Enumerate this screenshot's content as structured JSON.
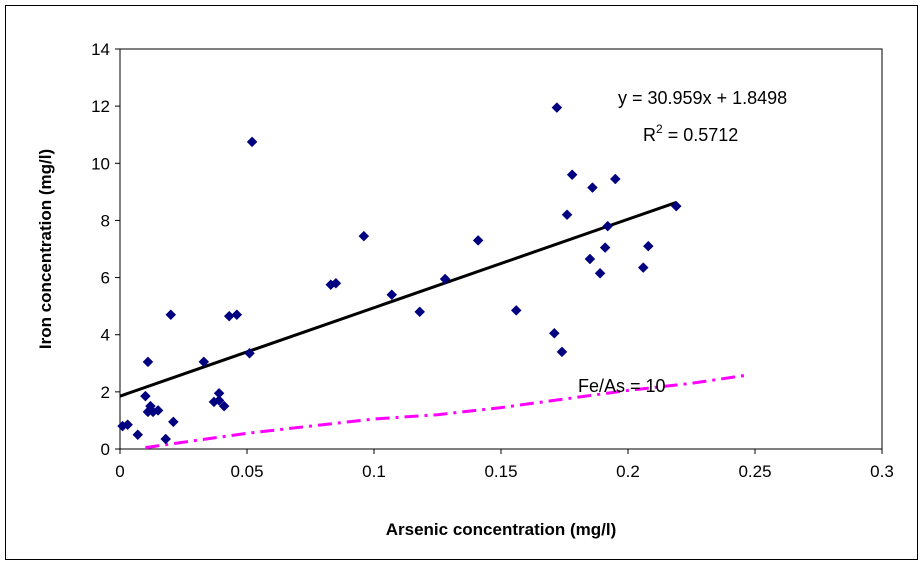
{
  "chart_data": {
    "type": "scatter",
    "title": "",
    "xlabel": "Arsenic concentration (mg/l)",
    "ylabel": "Iron concentration (mg/l)",
    "xlim": [
      0,
      0.3
    ],
    "ylim": [
      0,
      14
    ],
    "x_ticks": [
      "0",
      "0.05",
      "0.1",
      "0.15",
      "0.2",
      "0.25",
      "0.3"
    ],
    "y_ticks": [
      "0",
      "2",
      "4",
      "6",
      "8",
      "10",
      "12",
      "14"
    ],
    "grid": false,
    "legend": "none",
    "series": [
      {
        "color": "#000080",
        "marker": "diamond",
        "points": [
          [
            0.001,
            0.8
          ],
          [
            0.003,
            0.85
          ],
          [
            0.007,
            0.5
          ],
          [
            0.01,
            1.85
          ],
          [
            0.011,
            1.3
          ],
          [
            0.011,
            3.05
          ],
          [
            0.012,
            1.5
          ],
          [
            0.013,
            1.3
          ],
          [
            0.015,
            1.35
          ],
          [
            0.018,
            0.35
          ],
          [
            0.02,
            4.7
          ],
          [
            0.021,
            0.95
          ],
          [
            0.033,
            3.05
          ],
          [
            0.037,
            1.65
          ],
          [
            0.039,
            1.95
          ],
          [
            0.039,
            1.7
          ],
          [
            0.041,
            1.5
          ],
          [
            0.043,
            4.65
          ],
          [
            0.046,
            4.7
          ],
          [
            0.051,
            3.35
          ],
          [
            0.052,
            10.75
          ],
          [
            0.083,
            5.75
          ],
          [
            0.085,
            5.8
          ],
          [
            0.096,
            7.45
          ],
          [
            0.107,
            5.4
          ],
          [
            0.118,
            4.8
          ],
          [
            0.128,
            5.95
          ],
          [
            0.141,
            7.3
          ],
          [
            0.156,
            4.85
          ],
          [
            0.171,
            4.05
          ],
          [
            0.172,
            11.95
          ],
          [
            0.174,
            3.4
          ],
          [
            0.176,
            8.2
          ],
          [
            0.178,
            9.6
          ],
          [
            0.185,
            6.65
          ],
          [
            0.186,
            9.15
          ],
          [
            0.189,
            6.15
          ],
          [
            0.191,
            7.05
          ],
          [
            0.192,
            7.8
          ],
          [
            0.195,
            9.45
          ],
          [
            0.206,
            6.35
          ],
          [
            0.208,
            7.1
          ],
          [
            0.219,
            8.5
          ]
        ]
      }
    ],
    "trendline": {
      "slope": 30.959,
      "intercept": 1.8498,
      "x_range": [
        0,
        0.219
      ],
      "color": "#000000",
      "equation": "y = 30.959x + 1.8498",
      "r2_prefix": "R",
      "r2_sup": "2",
      "r2_value": " = 0.5712"
    },
    "reference_line": {
      "label": "Fe/As = 10",
      "color": "#ff00ff",
      "points": [
        [
          0.01,
          0.05
        ],
        [
          0.03,
          0.3
        ],
        [
          0.05,
          0.55
        ],
        [
          0.075,
          0.8
        ],
        [
          0.1,
          1.05
        ],
        [
          0.125,
          1.2
        ],
        [
          0.15,
          1.45
        ],
        [
          0.175,
          1.75
        ],
        [
          0.2,
          2.05
        ],
        [
          0.225,
          2.3
        ],
        [
          0.248,
          2.6
        ]
      ]
    }
  }
}
